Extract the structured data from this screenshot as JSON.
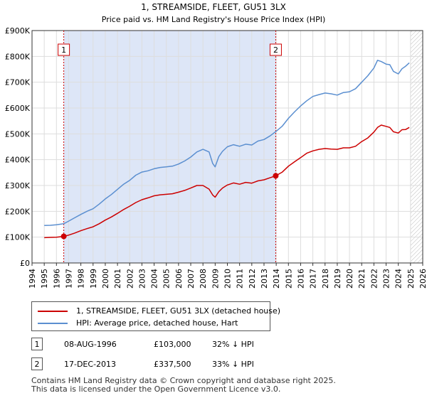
{
  "chart_data": {
    "type": "line",
    "title": "1, STREAMSIDE, FLEET, GU51 3LX",
    "subtitle": "Price paid vs. HM Land Registry's House Price Index (HPI)",
    "ylim": [
      0,
      900000
    ],
    "xlim": [
      1994,
      2026
    ],
    "y_ticks": [
      {
        "value": 0,
        "label": "£0"
      },
      {
        "value": 100000,
        "label": "£100K"
      },
      {
        "value": 200000,
        "label": "£200K"
      },
      {
        "value": 300000,
        "label": "£300K"
      },
      {
        "value": 400000,
        "label": "£400K"
      },
      {
        "value": 500000,
        "label": "£500K"
      },
      {
        "value": 600000,
        "label": "£600K"
      },
      {
        "value": 700000,
        "label": "£700K"
      },
      {
        "value": 800000,
        "label": "£800K"
      },
      {
        "value": 900000,
        "label": "£900K"
      }
    ],
    "x_ticks": [
      "1994",
      "1995",
      "1996",
      "1997",
      "1998",
      "1999",
      "2000",
      "2001",
      "2002",
      "2003",
      "2004",
      "2005",
      "2006",
      "2007",
      "2008",
      "2009",
      "2010",
      "2011",
      "2012",
      "2013",
      "2014",
      "2015",
      "2016",
      "2017",
      "2018",
      "2019",
      "2020",
      "2021",
      "2022",
      "2023",
      "2024",
      "2025",
      "2026"
    ],
    "shaded_period": [
      1996.6,
      2013.96
    ],
    "data_end": 2025.0,
    "series": [
      {
        "name": "1, STREAMSIDE, FLEET, GU51 3LX (detached house)",
        "color": "#cc0000",
        "x": [
          1995.0,
          1995.5,
          1996.0,
          1996.6,
          1997.0,
          1997.5,
          1998.0,
          1998.5,
          1999.0,
          1999.5,
          2000.0,
          2000.5,
          2001.0,
          2001.5,
          2002.0,
          2002.5,
          2003.0,
          2003.5,
          2004.0,
          2004.5,
          2005.0,
          2005.5,
          2006.0,
          2006.5,
          2007.0,
          2007.5,
          2008.0,
          2008.5,
          2008.8,
          2009.0,
          2009.3,
          2009.6,
          2010.0,
          2010.5,
          2011.0,
          2011.5,
          2012.0,
          2012.5,
          2013.0,
          2013.5,
          2013.96,
          2014.5,
          2015.0,
          2015.5,
          2016.0,
          2016.5,
          2017.0,
          2017.5,
          2018.0,
          2018.5,
          2019.0,
          2019.5,
          2020.0,
          2020.5,
          2021.0,
          2021.5,
          2022.0,
          2022.3,
          2022.6,
          2023.0,
          2023.3,
          2023.6,
          2024.0,
          2024.3,
          2024.6,
          2024.9
        ],
        "values": [
          98000,
          99000,
          100000,
          103000,
          108000,
          116000,
          125000,
          133000,
          140000,
          152000,
          166000,
          178000,
          192000,
          207000,
          220000,
          234000,
          245000,
          252000,
          260000,
          264000,
          266000,
          268000,
          274000,
          281000,
          290000,
          300000,
          300000,
          286000,
          263000,
          255000,
          276000,
          290000,
          302000,
          310000,
          305000,
          312000,
          309000,
          318000,
          322000,
          330000,
          337500,
          352000,
          375000,
          392000,
          408000,
          425000,
          434000,
          440000,
          443000,
          441000,
          440000,
          446000,
          446000,
          452000,
          470000,
          484000,
          507000,
          525000,
          534000,
          529000,
          525000,
          508000,
          503000,
          516000,
          517000,
          525000
        ]
      },
      {
        "name": "HPI: Average price, detached house, Hart",
        "color": "#5b8fd0",
        "x": [
          1995.0,
          1995.5,
          1996.0,
          1996.6,
          1997.0,
          1997.5,
          1998.0,
          1998.5,
          1999.0,
          1999.5,
          2000.0,
          2000.5,
          2001.0,
          2001.5,
          2002.0,
          2002.5,
          2003.0,
          2003.5,
          2004.0,
          2004.5,
          2005.0,
          2005.5,
          2006.0,
          2006.5,
          2007.0,
          2007.5,
          2008.0,
          2008.5,
          2008.8,
          2009.0,
          2009.3,
          2009.6,
          2010.0,
          2010.5,
          2011.0,
          2011.5,
          2012.0,
          2012.5,
          2013.0,
          2013.5,
          2014.0,
          2014.5,
          2015.0,
          2015.5,
          2016.0,
          2016.5,
          2017.0,
          2017.5,
          2018.0,
          2018.5,
          2019.0,
          2019.5,
          2020.0,
          2020.5,
          2021.0,
          2021.5,
          2022.0,
          2022.3,
          2022.6,
          2023.0,
          2023.3,
          2023.6,
          2024.0,
          2024.3,
          2024.6,
          2024.9
        ],
        "values": [
          145000,
          146000,
          148000,
          152000,
          162000,
          175000,
          188000,
          200000,
          210000,
          228000,
          248000,
          265000,
          285000,
          305000,
          320000,
          340000,
          352000,
          357000,
          365000,
          370000,
          372000,
          375000,
          383000,
          395000,
          410000,
          430000,
          440000,
          430000,
          385000,
          372000,
          412000,
          432000,
          450000,
          458000,
          452000,
          460000,
          457000,
          472000,
          478000,
          492000,
          510000,
          530000,
          560000,
          585000,
          608000,
          628000,
          645000,
          652000,
          658000,
          655000,
          650000,
          660000,
          663000,
          675000,
          700000,
          725000,
          755000,
          785000,
          780000,
          770000,
          768000,
          742000,
          732000,
          752000,
          762000,
          775000
        ]
      }
    ],
    "markers": [
      {
        "label": "1",
        "x": 1996.6,
        "value": 103000
      },
      {
        "label": "2",
        "x": 2013.96,
        "value": 337500
      }
    ]
  },
  "legend": {
    "property": "1, STREAMSIDE, FLEET, GU51 3LX (detached house)",
    "hpi": "HPI: Average price, detached house, Hart"
  },
  "transactions": [
    {
      "badge": "1",
      "date": "08-AUG-1996",
      "price": "£103,000",
      "hpi": "32% ↓ HPI"
    },
    {
      "badge": "2",
      "date": "17-DEC-2013",
      "price": "£337,500",
      "hpi": "33% ↓ HPI"
    }
  ],
  "footer": {
    "line1": "Contains HM Land Registry data © Crown copyright and database right 2025.",
    "line2": "This data is licensed under the Open Government Licence v3.0."
  },
  "colors": {
    "shade": "#dde6f7",
    "grid": "#dddddd",
    "red": "#cc0000",
    "blue": "#5b8fd0"
  }
}
